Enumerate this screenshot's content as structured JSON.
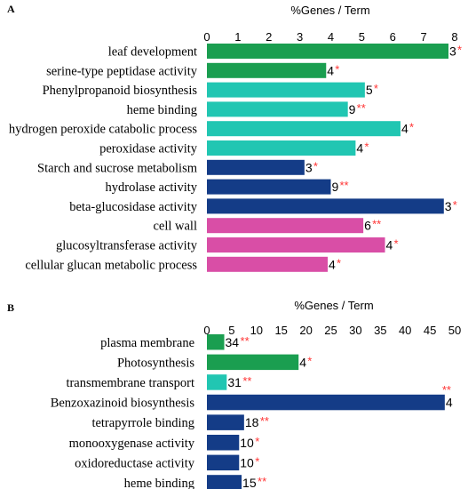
{
  "colors": {
    "green": "#1a9e50",
    "teal": "#21c6b2",
    "navy": "#143c87",
    "pink": "#d94ea6",
    "sig": "#ff3333"
  },
  "chart_data": [
    {
      "panel_label": "A",
      "type": "bar",
      "orientation": "horizontal",
      "axis_title": "%Genes / Term",
      "xlim": [
        0,
        8
      ],
      "ticks": [
        0,
        1,
        2,
        3,
        4,
        5,
        6,
        7,
        8
      ],
      "bars": [
        {
          "label": "leaf development",
          "value": 7.8,
          "count": "3",
          "sig": "*",
          "color": "green"
        },
        {
          "label": "serine-type peptidase activity",
          "value": 3.85,
          "count": "4",
          "sig": "*",
          "color": "green"
        },
        {
          "label": "Phenylpropanoid biosynthesis",
          "value": 5.1,
          "count": "5",
          "sig": "*",
          "color": "teal"
        },
        {
          "label": "heme binding",
          "value": 4.55,
          "count": "9",
          "sig": "**",
          "color": "teal"
        },
        {
          "label": "hydrogen peroxide catabolic process",
          "value": 6.25,
          "count": "4",
          "sig": "*",
          "color": "teal"
        },
        {
          "label": "peroxidase activity",
          "value": 4.8,
          "count": "4",
          "sig": "*",
          "color": "teal"
        },
        {
          "label": "Starch and sucrose metabolism",
          "value": 3.15,
          "count": "3",
          "sig": "*",
          "color": "navy"
        },
        {
          "label": "hydrolase activity",
          "value": 4.0,
          "count": "9",
          "sig": "**",
          "color": "navy"
        },
        {
          "label": "beta-glucosidase activity",
          "value": 7.65,
          "count": "3",
          "sig": "*",
          "color": "navy"
        },
        {
          "label": "cell wall",
          "value": 5.05,
          "count": "6",
          "sig": "**",
          "color": "pink"
        },
        {
          "label": "glucosyltransferase activity",
          "value": 5.75,
          "count": "4",
          "sig": "*",
          "color": "pink"
        },
        {
          "label": "cellular glucan metabolic process",
          "value": 3.9,
          "count": "4",
          "sig": "*",
          "color": "pink"
        }
      ]
    },
    {
      "panel_label": "B",
      "type": "bar",
      "orientation": "horizontal",
      "axis_title": "%Genes / Term",
      "xlim": [
        0,
        50
      ],
      "ticks": [
        0,
        5,
        10,
        15,
        20,
        25,
        30,
        35,
        40,
        45,
        50
      ],
      "bars": [
        {
          "label": "plasma membrane",
          "value": 3.5,
          "count": "34",
          "sig": "**",
          "color": "green"
        },
        {
          "label": "Photosynthesis",
          "value": 18.5,
          "count": "4",
          "sig": "*",
          "color": "green"
        },
        {
          "label": "transmembrane transport",
          "value": 4.0,
          "count": "31",
          "sig": "**",
          "color": "teal"
        },
        {
          "label": "Benzoxazinoid biosynthesis",
          "value": 48.0,
          "count": "4",
          "sig": "**",
          "color": "navy"
        },
        {
          "label": "tetrapyrrole binding",
          "value": 7.5,
          "count": "18",
          "sig": "**",
          "color": "navy"
        },
        {
          "label": "monooxygenase activity",
          "value": 6.5,
          "count": "10",
          "sig": "*",
          "color": "navy"
        },
        {
          "label": "oxidoreductase activity",
          "value": 6.5,
          "count": "10",
          "sig": "*",
          "color": "navy"
        },
        {
          "label": "heme binding",
          "value": 7.0,
          "count": "15",
          "sig": "**",
          "color": "navy"
        }
      ]
    }
  ]
}
